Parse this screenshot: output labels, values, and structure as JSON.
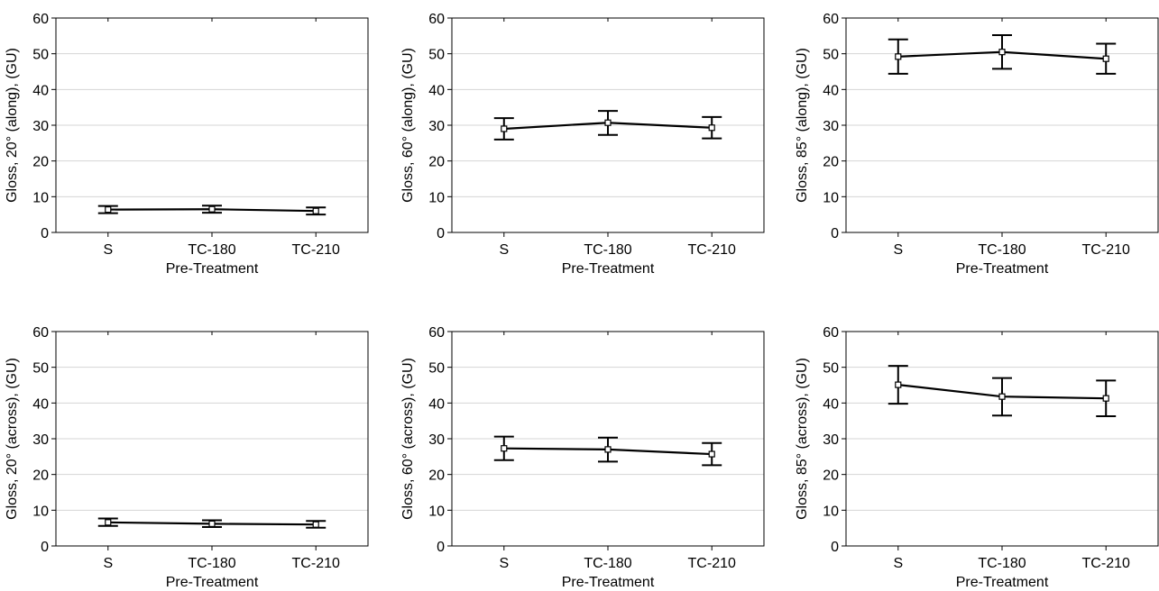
{
  "chart_data": [
    {
      "type": "line",
      "ylabel": "Gloss, 20° (along), (GU)",
      "xlabel": "Pre-Treatment",
      "categories": [
        "S",
        "TC-180",
        "TC-210"
      ],
      "series": [
        {
          "values": [
            6.4,
            6.5,
            6.0
          ],
          "error_low": [
            5.4,
            5.5,
            5.0
          ],
          "error_high": [
            7.4,
            7.5,
            7.0
          ]
        }
      ],
      "ylim": [
        0,
        60
      ],
      "yticks": [
        0,
        10,
        20,
        30,
        40,
        50,
        60
      ],
      "grid": "horizontal"
    },
    {
      "type": "line",
      "ylabel": "Gloss, 60° (along), (GU)",
      "xlabel": "Pre-Treatment",
      "categories": [
        "S",
        "TC-180",
        "TC-210"
      ],
      "series": [
        {
          "values": [
            29.0,
            30.7,
            29.3
          ],
          "error_low": [
            26.0,
            27.3,
            26.3
          ],
          "error_high": [
            32.0,
            34.0,
            32.3
          ]
        }
      ],
      "ylim": [
        0,
        60
      ],
      "yticks": [
        0,
        10,
        20,
        30,
        40,
        50,
        60
      ],
      "grid": "horizontal"
    },
    {
      "type": "line",
      "ylabel": "Gloss, 85° (along), (GU)",
      "xlabel": "Pre-Treatment",
      "categories": [
        "S",
        "TC-180",
        "TC-210"
      ],
      "series": [
        {
          "values": [
            49.2,
            50.5,
            48.6
          ],
          "error_low": [
            44.4,
            45.8,
            44.4
          ],
          "error_high": [
            54.0,
            55.2,
            52.8
          ]
        }
      ],
      "ylim": [
        0,
        60
      ],
      "yticks": [
        0,
        10,
        20,
        30,
        40,
        50,
        60
      ],
      "grid": "horizontal"
    },
    {
      "type": "line",
      "ylabel": "Gloss, 20° (across), (GU)",
      "xlabel": "Pre-Treatment",
      "categories": [
        "S",
        "TC-180",
        "TC-210"
      ],
      "series": [
        {
          "values": [
            6.6,
            6.2,
            6.0
          ],
          "error_low": [
            5.6,
            5.3,
            5.1
          ],
          "error_high": [
            7.7,
            7.2,
            7.0
          ]
        }
      ],
      "ylim": [
        0,
        60
      ],
      "yticks": [
        0,
        10,
        20,
        30,
        40,
        50,
        60
      ],
      "grid": "horizontal"
    },
    {
      "type": "line",
      "ylabel": "Gloss, 60° (across), (GU)",
      "xlabel": "Pre-Treatment",
      "categories": [
        "S",
        "TC-180",
        "TC-210"
      ],
      "series": [
        {
          "values": [
            27.3,
            27.0,
            25.7
          ],
          "error_low": [
            24.0,
            23.6,
            22.6
          ],
          "error_high": [
            30.6,
            30.3,
            28.8
          ]
        }
      ],
      "ylim": [
        0,
        60
      ],
      "yticks": [
        0,
        10,
        20,
        30,
        40,
        50,
        60
      ],
      "grid": "horizontal"
    },
    {
      "type": "line",
      "ylabel": "Gloss, 85° (across), (GU)",
      "xlabel": "Pre-Treatment",
      "categories": [
        "S",
        "TC-180",
        "TC-210"
      ],
      "series": [
        {
          "values": [
            45.1,
            41.8,
            41.3
          ],
          "error_low": [
            39.8,
            36.5,
            36.3
          ],
          "error_high": [
            50.4,
            47.0,
            46.3
          ]
        }
      ],
      "ylim": [
        0,
        60
      ],
      "yticks": [
        0,
        10,
        20,
        30,
        40,
        50,
        60
      ],
      "grid": "horizontal"
    }
  ]
}
